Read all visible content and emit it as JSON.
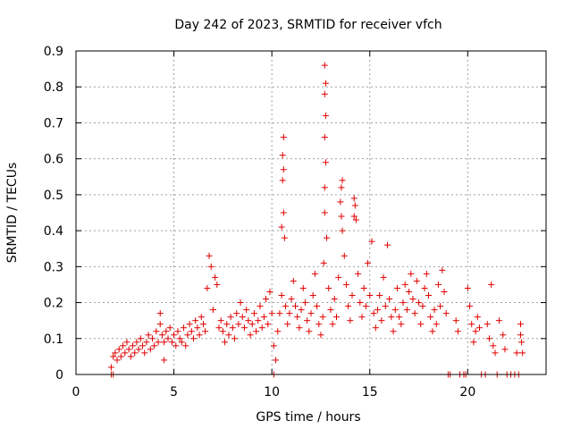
{
  "chart_data": {
    "type": "scatter",
    "title": "Day 242 of 2023, SRMTID for receiver vfch",
    "xlabel": "GPS time / hours",
    "ylabel": "SRMTID / TECUs",
    "xlim": [
      0,
      24
    ],
    "ylim": [
      0,
      0.9
    ],
    "xticks": [
      0,
      5,
      10,
      15,
      20
    ],
    "yticks": [
      0,
      0.1,
      0.2,
      0.3,
      0.4,
      0.5,
      0.6,
      0.7,
      0.8,
      0.9
    ],
    "xtick_labels": [
      "0",
      "5",
      "10",
      "15",
      "20"
    ],
    "ytick_labels": [
      "0",
      "0.1",
      "0.2",
      "0.3",
      "0.4",
      "0.5",
      "0.6",
      "0.7",
      "0.8",
      "0.9"
    ],
    "grid": true,
    "marker": "+",
    "color": "#e00000",
    "series": [
      {
        "name": "SRMTID",
        "points": [
          [
            1.8,
            0.0
          ],
          [
            1.9,
            0.0
          ],
          [
            1.8,
            0.02
          ],
          [
            1.9,
            0.05
          ],
          [
            2.0,
            0.06
          ],
          [
            2.1,
            0.04
          ],
          [
            2.2,
            0.07
          ],
          [
            2.3,
            0.05
          ],
          [
            2.4,
            0.08
          ],
          [
            2.5,
            0.06
          ],
          [
            2.6,
            0.09
          ],
          [
            2.7,
            0.07
          ],
          [
            2.8,
            0.05
          ],
          [
            2.9,
            0.08
          ],
          [
            3.0,
            0.06
          ],
          [
            3.1,
            0.09
          ],
          [
            3.2,
            0.07
          ],
          [
            3.3,
            0.1
          ],
          [
            3.4,
            0.08
          ],
          [
            3.5,
            0.06
          ],
          [
            3.6,
            0.09
          ],
          [
            3.7,
            0.11
          ],
          [
            3.8,
            0.07
          ],
          [
            3.9,
            0.1
          ],
          [
            4.0,
            0.08
          ],
          [
            4.1,
            0.12
          ],
          [
            4.2,
            0.09
          ],
          [
            4.3,
            0.14
          ],
          [
            4.4,
            0.11
          ],
          [
            4.5,
            0.09
          ],
          [
            4.3,
            0.17
          ],
          [
            4.5,
            0.04
          ],
          [
            4.6,
            0.12
          ],
          [
            4.7,
            0.1
          ],
          [
            4.8,
            0.13
          ],
          [
            4.9,
            0.09
          ],
          [
            5.0,
            0.11
          ],
          [
            5.1,
            0.08
          ],
          [
            5.2,
            0.12
          ],
          [
            5.3,
            0.1
          ],
          [
            5.4,
            0.09
          ],
          [
            5.5,
            0.13
          ],
          [
            5.6,
            0.08
          ],
          [
            5.7,
            0.11
          ],
          [
            5.8,
            0.14
          ],
          [
            5.9,
            0.12
          ],
          [
            6.0,
            0.1
          ],
          [
            6.1,
            0.15
          ],
          [
            6.2,
            0.13
          ],
          [
            6.3,
            0.11
          ],
          [
            6.4,
            0.16
          ],
          [
            6.5,
            0.14
          ],
          [
            6.6,
            0.12
          ],
          [
            6.7,
            0.24
          ],
          [
            6.8,
            0.33
          ],
          [
            6.9,
            0.3
          ],
          [
            7.0,
            0.18
          ],
          [
            7.1,
            0.27
          ],
          [
            7.2,
            0.25
          ],
          [
            7.3,
            0.13
          ],
          [
            7.4,
            0.15
          ],
          [
            7.5,
            0.12
          ],
          [
            7.6,
            0.09
          ],
          [
            7.7,
            0.14
          ],
          [
            7.8,
            0.11
          ],
          [
            7.9,
            0.16
          ],
          [
            8.0,
            0.13
          ],
          [
            8.1,
            0.1
          ],
          [
            8.2,
            0.17
          ],
          [
            8.3,
            0.14
          ],
          [
            8.4,
            0.2
          ],
          [
            8.5,
            0.16
          ],
          [
            8.6,
            0.13
          ],
          [
            8.7,
            0.18
          ],
          [
            8.8,
            0.15
          ],
          [
            8.9,
            0.11
          ],
          [
            9.0,
            0.14
          ],
          [
            9.1,
            0.17
          ],
          [
            9.2,
            0.12
          ],
          [
            9.3,
            0.15
          ],
          [
            9.4,
            0.19
          ],
          [
            9.5,
            0.13
          ],
          [
            9.6,
            0.16
          ],
          [
            9.7,
            0.21
          ],
          [
            9.8,
            0.14
          ],
          [
            9.9,
            0.23
          ],
          [
            10.0,
            0.17
          ],
          [
            10.1,
            0.08
          ],
          [
            10.2,
            0.04
          ],
          [
            10.3,
            0.12
          ],
          [
            10.1,
            0.0
          ],
          [
            10.4,
            0.17
          ],
          [
            10.5,
            0.22
          ],
          [
            10.55,
            0.54
          ],
          [
            10.6,
            0.57
          ],
          [
            10.55,
            0.61
          ],
          [
            10.6,
            0.66
          ],
          [
            10.5,
            0.41
          ],
          [
            10.6,
            0.45
          ],
          [
            10.65,
            0.38
          ],
          [
            10.7,
            0.19
          ],
          [
            10.8,
            0.14
          ],
          [
            10.9,
            0.17
          ],
          [
            11.0,
            0.21
          ],
          [
            11.1,
            0.26
          ],
          [
            11.2,
            0.19
          ],
          [
            11.3,
            0.16
          ],
          [
            11.4,
            0.13
          ],
          [
            11.5,
            0.18
          ],
          [
            11.6,
            0.24
          ],
          [
            11.7,
            0.2
          ],
          [
            11.8,
            0.15
          ],
          [
            11.9,
            0.12
          ],
          [
            12.0,
            0.17
          ],
          [
            12.1,
            0.22
          ],
          [
            12.2,
            0.28
          ],
          [
            12.3,
            0.19
          ],
          [
            12.4,
            0.14
          ],
          [
            12.5,
            0.11
          ],
          [
            12.6,
            0.16
          ],
          [
            12.65,
            0.31
          ],
          [
            12.7,
            0.45
          ],
          [
            12.7,
            0.52
          ],
          [
            12.75,
            0.59
          ],
          [
            12.7,
            0.66
          ],
          [
            12.75,
            0.72
          ],
          [
            12.7,
            0.78
          ],
          [
            12.75,
            0.81
          ],
          [
            12.7,
            0.86
          ],
          [
            12.8,
            0.38
          ],
          [
            12.9,
            0.24
          ],
          [
            13.0,
            0.18
          ],
          [
            13.1,
            0.14
          ],
          [
            13.2,
            0.21
          ],
          [
            13.3,
            0.16
          ],
          [
            13.4,
            0.27
          ],
          [
            13.5,
            0.48
          ],
          [
            13.55,
            0.52
          ],
          [
            13.6,
            0.54
          ],
          [
            13.55,
            0.44
          ],
          [
            13.6,
            0.4
          ],
          [
            13.7,
            0.33
          ],
          [
            13.8,
            0.25
          ],
          [
            13.9,
            0.19
          ],
          [
            14.0,
            0.15
          ],
          [
            14.1,
            0.22
          ],
          [
            14.2,
            0.44
          ],
          [
            14.25,
            0.47
          ],
          [
            14.2,
            0.49
          ],
          [
            14.3,
            0.43
          ],
          [
            14.4,
            0.28
          ],
          [
            14.5,
            0.2
          ],
          [
            14.6,
            0.16
          ],
          [
            14.7,
            0.24
          ],
          [
            14.8,
            0.19
          ],
          [
            14.9,
            0.31
          ],
          [
            15.0,
            0.22
          ],
          [
            15.1,
            0.37
          ],
          [
            15.2,
            0.17
          ],
          [
            15.3,
            0.13
          ],
          [
            15.4,
            0.18
          ],
          [
            15.5,
            0.22
          ],
          [
            15.6,
            0.15
          ],
          [
            15.7,
            0.27
          ],
          [
            15.8,
            0.19
          ],
          [
            15.9,
            0.36
          ],
          [
            16.0,
            0.21
          ],
          [
            16.1,
            0.16
          ],
          [
            16.2,
            0.12
          ],
          [
            16.3,
            0.18
          ],
          [
            16.4,
            0.24
          ],
          [
            16.5,
            0.16
          ],
          [
            16.6,
            0.14
          ],
          [
            16.7,
            0.2
          ],
          [
            16.8,
            0.25
          ],
          [
            16.9,
            0.18
          ],
          [
            17.0,
            0.23
          ],
          [
            17.1,
            0.28
          ],
          [
            17.2,
            0.21
          ],
          [
            17.3,
            0.17
          ],
          [
            17.4,
            0.26
          ],
          [
            17.5,
            0.2
          ],
          [
            17.6,
            0.14
          ],
          [
            17.7,
            0.19
          ],
          [
            17.8,
            0.24
          ],
          [
            17.9,
            0.28
          ],
          [
            18.0,
            0.22
          ],
          [
            18.1,
            0.16
          ],
          [
            18.2,
            0.12
          ],
          [
            18.3,
            0.18
          ],
          [
            18.4,
            0.14
          ],
          [
            18.5,
            0.25
          ],
          [
            18.6,
            0.19
          ],
          [
            18.7,
            0.29
          ],
          [
            18.8,
            0.23
          ],
          [
            18.9,
            0.17
          ],
          [
            19.0,
            0.0
          ],
          [
            19.1,
            0.0
          ],
          [
            19.4,
            0.15
          ],
          [
            19.5,
            0.12
          ],
          [
            19.6,
            0.0
          ],
          [
            19.8,
            0.0
          ],
          [
            19.9,
            0.0
          ],
          [
            20.0,
            0.24
          ],
          [
            20.1,
            0.19
          ],
          [
            20.2,
            0.14
          ],
          [
            20.3,
            0.09
          ],
          [
            20.4,
            0.12
          ],
          [
            20.5,
            0.16
          ],
          [
            20.6,
            0.13
          ],
          [
            20.7,
            0.0
          ],
          [
            20.9,
            0.0
          ],
          [
            21.0,
            0.14
          ],
          [
            21.1,
            0.1
          ],
          [
            21.2,
            0.25
          ],
          [
            21.3,
            0.08
          ],
          [
            21.4,
            0.06
          ],
          [
            21.5,
            0.0
          ],
          [
            21.6,
            0.15
          ],
          [
            21.8,
            0.11
          ],
          [
            21.9,
            0.07
          ],
          [
            22.0,
            0.0
          ],
          [
            22.2,
            0.0
          ],
          [
            22.4,
            0.0
          ],
          [
            22.5,
            0.06
          ],
          [
            22.6,
            0.0
          ],
          [
            22.7,
            0.14
          ],
          [
            22.75,
            0.09
          ],
          [
            22.8,
            0.06
          ],
          [
            22.7,
            0.11
          ]
        ]
      }
    ]
  }
}
